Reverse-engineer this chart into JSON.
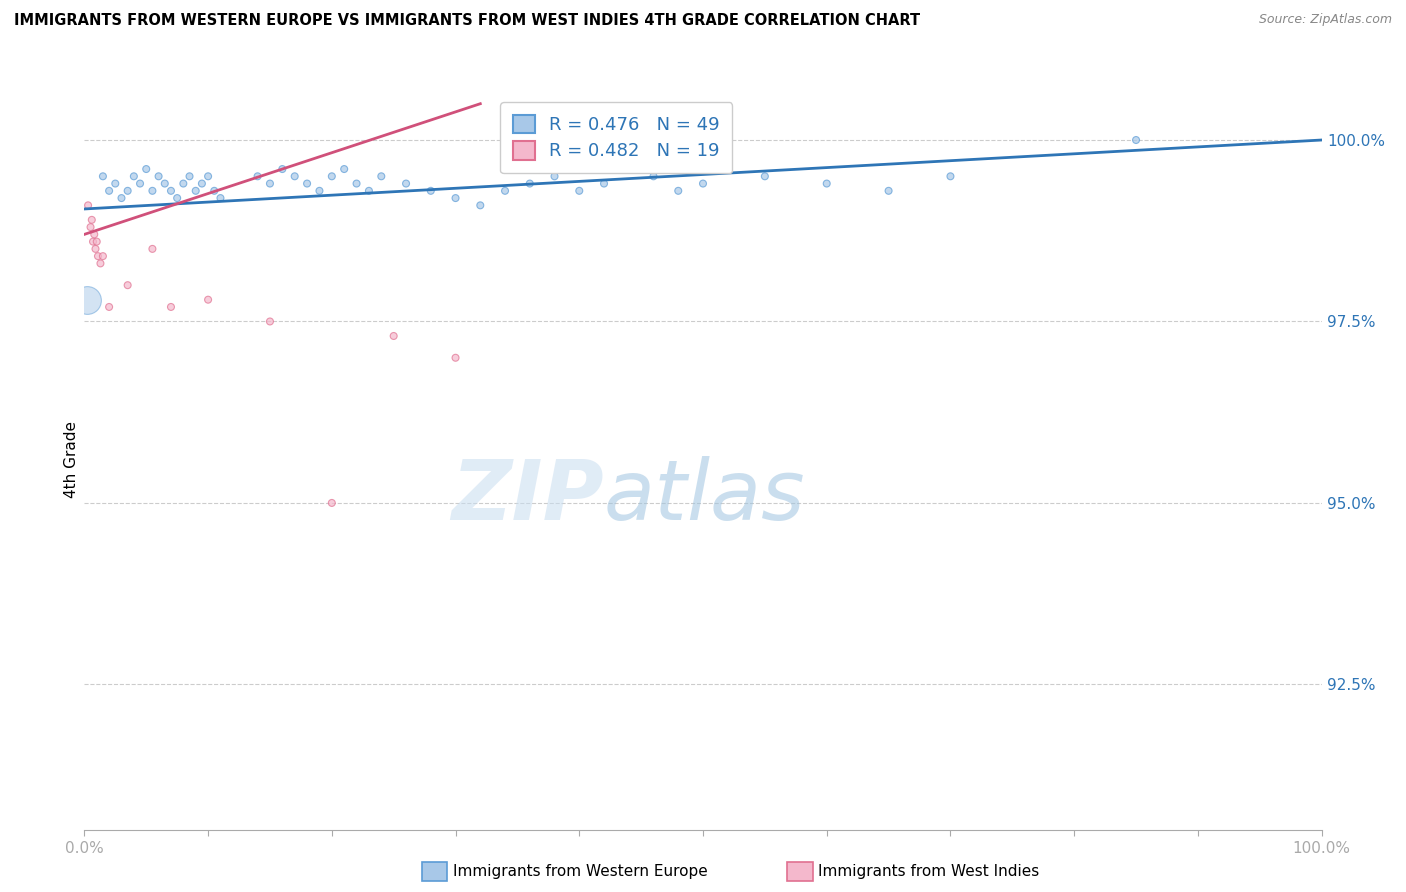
{
  "title": "IMMIGRANTS FROM WESTERN EUROPE VS IMMIGRANTS FROM WEST INDIES 4TH GRADE CORRELATION CHART",
  "source": "Source: ZipAtlas.com",
  "ylabel": "4th Grade",
  "y_tick_labels": [
    "92.5%",
    "95.0%",
    "97.5%",
    "100.0%"
  ],
  "y_tick_values": [
    92.5,
    95.0,
    97.5,
    100.0
  ],
  "x_min": 0.0,
  "x_max": 100.0,
  "y_min": 90.5,
  "y_max": 100.7,
  "legend_blue_label": "R = 0.476   N = 49",
  "legend_pink_label": "R = 0.482   N = 19",
  "blue_color": "#a8c8e8",
  "pink_color": "#f4b8cc",
  "blue_edge_color": "#5b9bd5",
  "pink_edge_color": "#e07090",
  "blue_line_color": "#2e75b6",
  "pink_line_color": "#d0507a",
  "label_color": "#2e75b6",
  "watermark_color": "#ddeeff",
  "footer_blue": "Immigrants from Western Europe",
  "footer_pink": "Immigrants from West Indies",
  "blue_x": [
    1.5,
    2.0,
    2.5,
    3.0,
    3.5,
    4.0,
    4.5,
    5.0,
    5.5,
    6.0,
    6.5,
    7.0,
    7.5,
    8.0,
    8.5,
    9.0,
    9.5,
    10.0,
    10.5,
    11.0,
    14.0,
    15.0,
    16.0,
    17.0,
    18.0,
    19.0,
    20.0,
    21.0,
    22.0,
    23.0,
    24.0,
    26.0,
    28.0,
    30.0,
    32.0,
    34.0,
    36.0,
    38.0,
    40.0,
    42.0,
    44.0,
    46.0,
    48.0,
    50.0,
    55.0,
    60.0,
    65.0,
    70.0,
    85.0
  ],
  "blue_y": [
    99.5,
    99.3,
    99.4,
    99.2,
    99.3,
    99.5,
    99.4,
    99.6,
    99.3,
    99.5,
    99.4,
    99.3,
    99.2,
    99.4,
    99.5,
    99.3,
    99.4,
    99.5,
    99.3,
    99.2,
    99.5,
    99.4,
    99.6,
    99.5,
    99.4,
    99.3,
    99.5,
    99.6,
    99.4,
    99.3,
    99.5,
    99.4,
    99.3,
    99.2,
    99.1,
    99.3,
    99.4,
    99.5,
    99.3,
    99.4,
    99.6,
    99.5,
    99.3,
    99.4,
    99.5,
    99.4,
    99.3,
    99.5,
    100.0
  ],
  "blue_sizes": [
    25,
    25,
    25,
    25,
    25,
    25,
    25,
    25,
    25,
    25,
    25,
    25,
    25,
    25,
    25,
    25,
    25,
    25,
    25,
    25,
    25,
    25,
    25,
    25,
    25,
    25,
    25,
    25,
    25,
    25,
    25,
    25,
    25,
    25,
    25,
    25,
    25,
    25,
    25,
    25,
    25,
    25,
    25,
    25,
    25,
    25,
    25,
    25,
    25
  ],
  "pink_x": [
    0.3,
    0.5,
    0.6,
    0.7,
    0.8,
    0.9,
    1.0,
    1.1,
    1.3,
    1.5,
    2.0,
    3.5,
    5.5,
    7.0,
    10.0,
    15.0,
    20.0,
    25.0,
    30.0
  ],
  "pink_y": [
    99.1,
    98.8,
    98.9,
    98.6,
    98.7,
    98.5,
    98.6,
    98.4,
    98.3,
    98.4,
    97.7,
    98.0,
    98.5,
    97.7,
    97.8,
    97.5,
    95.0,
    97.3,
    97.0
  ],
  "pink_sizes": [
    25,
    25,
    25,
    25,
    25,
    25,
    25,
    25,
    25,
    25,
    25,
    25,
    25,
    25,
    25,
    25,
    25,
    25,
    25
  ],
  "large_blue_x": [
    0.2
  ],
  "large_blue_y": [
    97.8
  ],
  "large_blue_size": [
    400
  ],
  "blue_trend_x0": 0.0,
  "blue_trend_x1": 100.0,
  "blue_trend_y0": 99.05,
  "blue_trend_y1": 100.0,
  "pink_trend_x0": 0.0,
  "pink_trend_x1": 32.0,
  "pink_trend_y0": 98.7,
  "pink_trend_y1": 100.5
}
